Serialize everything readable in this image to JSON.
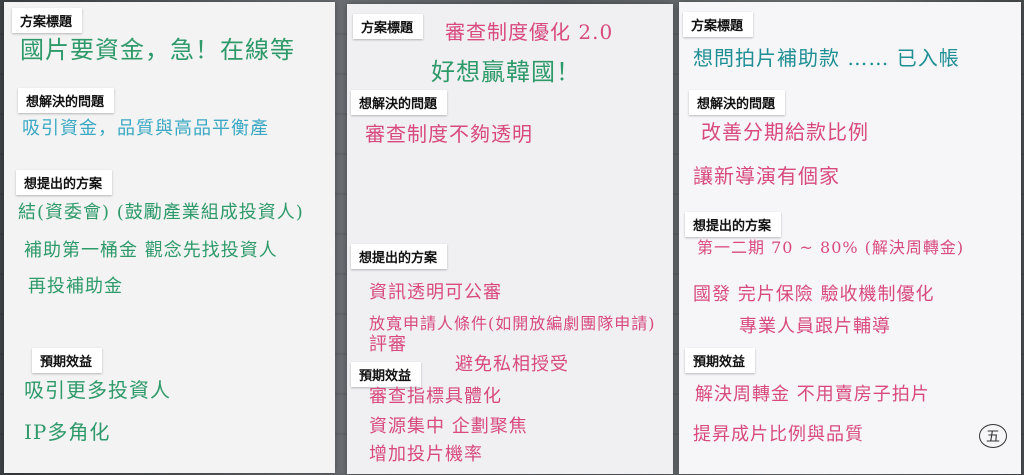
{
  "labels": {
    "title": "方案標題",
    "problem": "想解決的問題",
    "solution": "想提出的方案",
    "benefit": "預期效益"
  },
  "sheets": [
    {
      "title_text": "國片要資金，急！在線等",
      "problem": [
        "吸引資金，品質與高品平衡產"
      ],
      "solution": [
        "結(資委會) (鼓勵產業組成投資人)",
        "補助第一桶金 觀念先找投資人",
        "再投補助金"
      ],
      "benefit": [
        "吸引更多投資人",
        "IP多角化"
      ]
    },
    {
      "title_text": "審查制度優化 2.0",
      "title_text_2": "好想贏韓國！",
      "problem": [
        "審查制度不夠透明"
      ],
      "solution": [
        "資訊透明可公審",
        "放寬申請人條件(如開放編劇團隊申請)",
        "評審"
      ],
      "solution_extra": "避免私相授受",
      "benefit": [
        "審查指標具體化",
        "資源集中 企劃聚焦",
        "增加投片機率"
      ]
    },
    {
      "title_text": "想問拍片補助款 …… 已入帳",
      "problem": [
        "改善分期給款比例",
        "讓新導演有個家"
      ],
      "solution": [
        "第一二期 70 ~ 80% (解決周轉金)",
        "國發 完片保險 驗收機制優化",
        "專業人員跟片輔導"
      ],
      "benefit": [
        "解決周轉金 不用賣房子拍片",
        "提昇成片比例與品質"
      ],
      "badge": "五"
    }
  ]
}
